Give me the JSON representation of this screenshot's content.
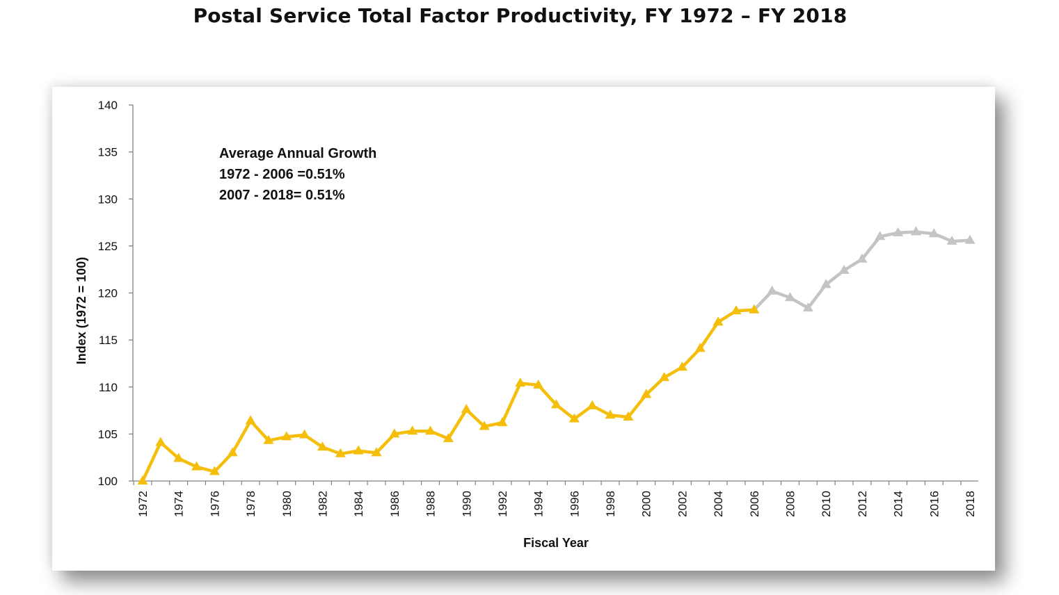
{
  "title": "Postal Service Total Factor Productivity, FY 1972 – FY 2018",
  "colors": {
    "series_1972_2006": "#F5BE0B",
    "series_2006_2018": "#C4C4C4",
    "axis": "#808080",
    "text": "#111111"
  },
  "chart_data": {
    "type": "line",
    "xlabel": "Fiscal Year",
    "ylabel": "Index (1972 = 100)",
    "ylim": [
      100,
      140
    ],
    "yticks": [
      "100",
      "105",
      "110",
      "115",
      "120",
      "125",
      "130",
      "135",
      "140"
    ],
    "xlim": [
      1972,
      2018
    ],
    "xticks": [
      "1972",
      "1974",
      "1976",
      "1978",
      "1980",
      "1982",
      "1984",
      "1986",
      "1988",
      "1990",
      "1992",
      "1994",
      "1996",
      "1998",
      "2000",
      "2002",
      "2004",
      "2006",
      "2008",
      "2010",
      "2012",
      "2014",
      "2016",
      "2018"
    ],
    "grid": false,
    "marker": "triangle",
    "annotation": {
      "lines": [
        "Average Annual Growth",
        "1972 - 2006 =0.51%",
        "2007 - 2018= 0.51%"
      ]
    },
    "series": [
      {
        "color": "#F5BE0B",
        "x": [
          1972,
          1973,
          1974,
          1975,
          1976,
          1977,
          1978,
          1979,
          1980,
          1981,
          1982,
          1983,
          1984,
          1985,
          1986,
          1987,
          1988,
          1989,
          1990,
          1991,
          1992,
          1993,
          1994,
          1995,
          1996,
          1997,
          1998,
          1999,
          2000,
          2001,
          2002,
          2003,
          2004,
          2005,
          2006
        ],
        "values": [
          100.0,
          104.1,
          102.4,
          101.5,
          101.0,
          103.0,
          106.4,
          104.3,
          104.7,
          104.9,
          103.6,
          102.9,
          103.2,
          103.0,
          105.0,
          105.3,
          105.3,
          104.5,
          107.6,
          105.8,
          106.2,
          110.4,
          110.2,
          108.1,
          106.6,
          108.0,
          107.0,
          106.8,
          109.2,
          111.0,
          112.1,
          114.1,
          116.9,
          118.1,
          118.2
        ]
      },
      {
        "color": "#C4C4C4",
        "x": [
          2006,
          2007,
          2008,
          2009,
          2010,
          2011,
          2012,
          2013,
          2014,
          2015,
          2016,
          2017,
          2018
        ],
        "values": [
          118.2,
          120.2,
          119.5,
          118.4,
          120.9,
          122.4,
          123.6,
          126.0,
          126.4,
          126.5,
          126.3,
          125.5,
          125.6
        ]
      }
    ]
  }
}
